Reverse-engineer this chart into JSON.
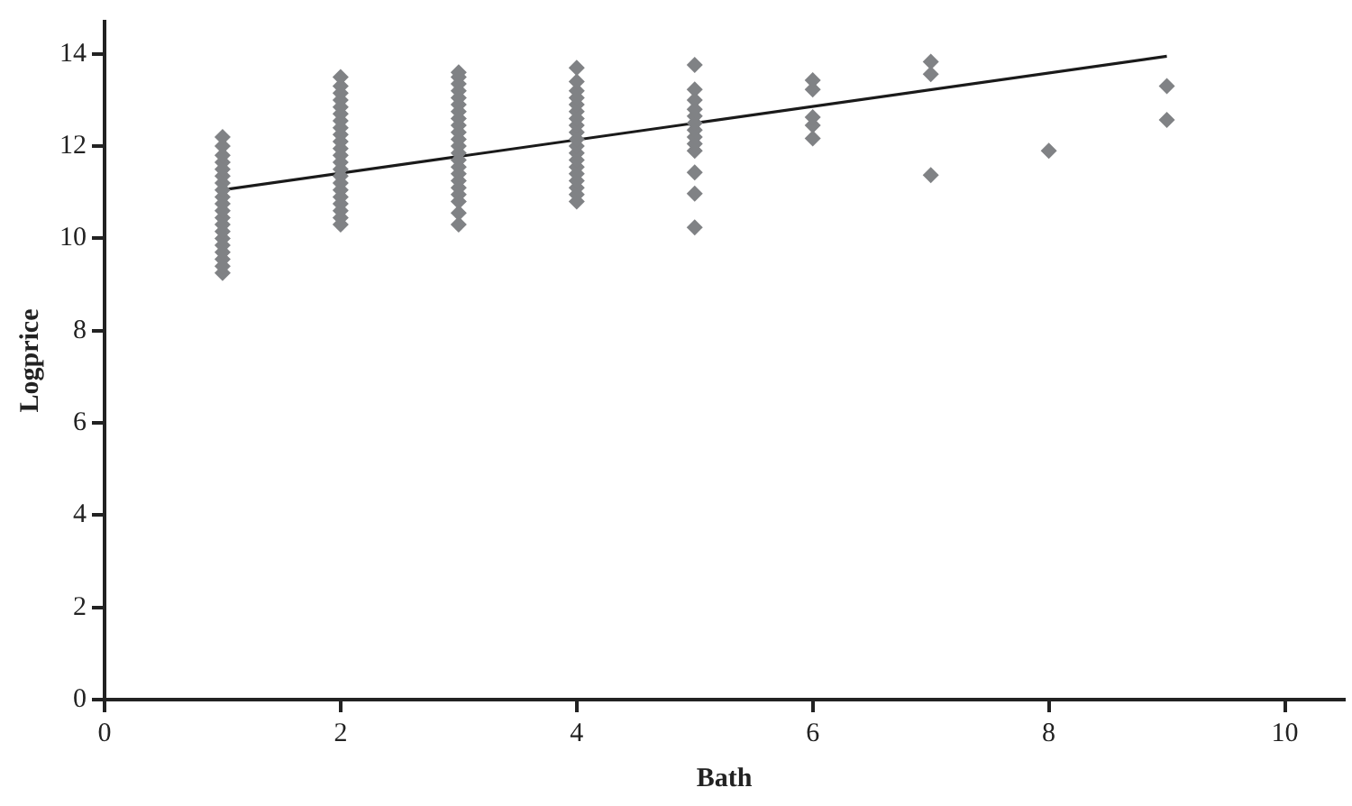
{
  "chart_data": {
    "type": "scatter",
    "xlabel": "Bath",
    "ylabel": "Logprice",
    "xlim": [
      0,
      10.5
    ],
    "ylim": [
      0,
      14.7
    ],
    "xticks": [
      0,
      2,
      4,
      6,
      8,
      10
    ],
    "yticks": [
      0,
      2,
      4,
      6,
      8,
      10,
      12,
      14
    ],
    "grid": false,
    "legend": false,
    "series": [
      {
        "type": "scatter",
        "marker": "diamond",
        "color": "#808285",
        "x": [
          1,
          1,
          1,
          1,
          1,
          1,
          1,
          1,
          1,
          1,
          1,
          1,
          1,
          1,
          1,
          1,
          1,
          1,
          1,
          1,
          2,
          2,
          2,
          2,
          2,
          2,
          2,
          2,
          2,
          2,
          2,
          2,
          2,
          2,
          2,
          2,
          2,
          2,
          2,
          2,
          2,
          2,
          3,
          3,
          3,
          3,
          3,
          3,
          3,
          3,
          3,
          3,
          3,
          3,
          3,
          3,
          3,
          3,
          3,
          3,
          3,
          3,
          3,
          3,
          4,
          4,
          4,
          4,
          4,
          4,
          4,
          4,
          4,
          4,
          4,
          4,
          4,
          4,
          4,
          4,
          4,
          4,
          4,
          5,
          5,
          5,
          5,
          5,
          5,
          5,
          5,
          5,
          5,
          5,
          5,
          5,
          6,
          6,
          6,
          6,
          6,
          7,
          7,
          7,
          8,
          9,
          9
        ],
        "values": [
          9.25,
          9.4,
          9.55,
          9.7,
          9.85,
          10,
          10.15,
          10.3,
          10.45,
          10.6,
          10.75,
          10.9,
          11.05,
          11.2,
          11.35,
          11.5,
          11.65,
          11.8,
          12,
          12.2,
          10.3,
          10.45,
          10.6,
          10.75,
          10.9,
          11.05,
          11.2,
          11.35,
          11.5,
          11.65,
          11.8,
          11.95,
          12.1,
          12.25,
          12.4,
          12.55,
          12.7,
          12.85,
          13,
          13.15,
          13.3,
          13.5,
          10.3,
          10.55,
          10.8,
          10.95,
          11.1,
          11.25,
          11.4,
          11.55,
          11.7,
          11.85,
          12,
          12.15,
          12.3,
          12.45,
          12.6,
          12.75,
          12.9,
          13.05,
          13.2,
          13.35,
          13.5,
          13.6,
          10.8,
          10.95,
          11.1,
          11.25,
          11.4,
          11.55,
          11.7,
          11.85,
          12,
          12.15,
          12.3,
          12.45,
          12.6,
          12.75,
          12.9,
          13.05,
          13.2,
          13.4,
          13.7,
          10.24,
          10.97,
          11.43,
          11.9,
          12.05,
          12.2,
          12.35,
          12.5,
          12.65,
          12.8,
          13,
          13.23,
          13.76,
          12.17,
          12.45,
          12.63,
          13.23,
          13.43,
          11.37,
          13.56,
          13.83,
          11.9,
          12.57,
          13.3
        ]
      },
      {
        "type": "line",
        "marker": "none",
        "line_style": "solid",
        "color": "#1a1a1a",
        "x": [
          1,
          9
        ],
        "values": [
          11.05,
          13.95
        ]
      }
    ]
  }
}
